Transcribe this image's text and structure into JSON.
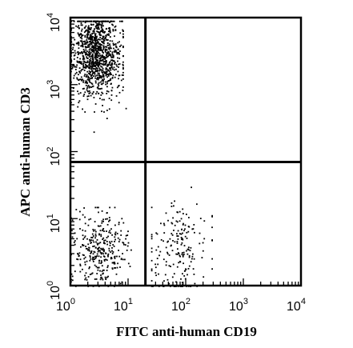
{
  "chart_data": {
    "type": "scatter",
    "title": "",
    "xlabel": "FITC anti-human CD19",
    "ylabel": "APC anti-human CD3",
    "xscale": "log",
    "yscale": "log",
    "xlim": [
      1,
      10000
    ],
    "ylim": [
      1,
      10000
    ],
    "grid": false,
    "legend": "none",
    "x_ticks": [
      {
        "base": "10",
        "exp": "0",
        "value": 1
      },
      {
        "base": "10",
        "exp": "1",
        "value": 10
      },
      {
        "base": "10",
        "exp": "2",
        "value": 100
      },
      {
        "base": "10",
        "exp": "3",
        "value": 1000
      },
      {
        "base": "10",
        "exp": "4",
        "value": 10000
      }
    ],
    "y_ticks": [
      {
        "base": "10",
        "exp": "0",
        "value": 1
      },
      {
        "base": "10",
        "exp": "1",
        "value": 10
      },
      {
        "base": "10",
        "exp": "2",
        "value": 100
      },
      {
        "base": "10",
        "exp": "3",
        "value": 1000
      },
      {
        "base": "10",
        "exp": "4",
        "value": 10000
      }
    ],
    "quadrant_gates": {
      "x": 20,
      "y": 70
    },
    "populations": [
      {
        "quadrant": "upper-left",
        "x_center": 2.8,
        "y_center": 3000,
        "x_range": [
          1,
          8
        ],
        "y_range": [
          400,
          9000
        ],
        "events": 1100
      },
      {
        "quadrant": "lower-left",
        "x_center": 3.2,
        "y_center": 3.5,
        "x_range": [
          1,
          11
        ],
        "y_range": [
          1,
          15
        ],
        "events": 330
      },
      {
        "quadrant": "lower-right",
        "x_center": 75,
        "y_center": 3.5,
        "x_range": [
          25,
          280
        ],
        "y_range": [
          1,
          30
        ],
        "events": 200
      }
    ],
    "outliers": [
      {
        "x": 2.5,
        "y": 200
      },
      {
        "x": 3.5,
        "y": 500
      },
      {
        "x": 5,
        "y": 600
      },
      {
        "x": 9,
        "y": 450
      },
      {
        "x": 2.2,
        "y": 700
      },
      {
        "x": 4.2,
        "y": 320
      }
    ]
  }
}
